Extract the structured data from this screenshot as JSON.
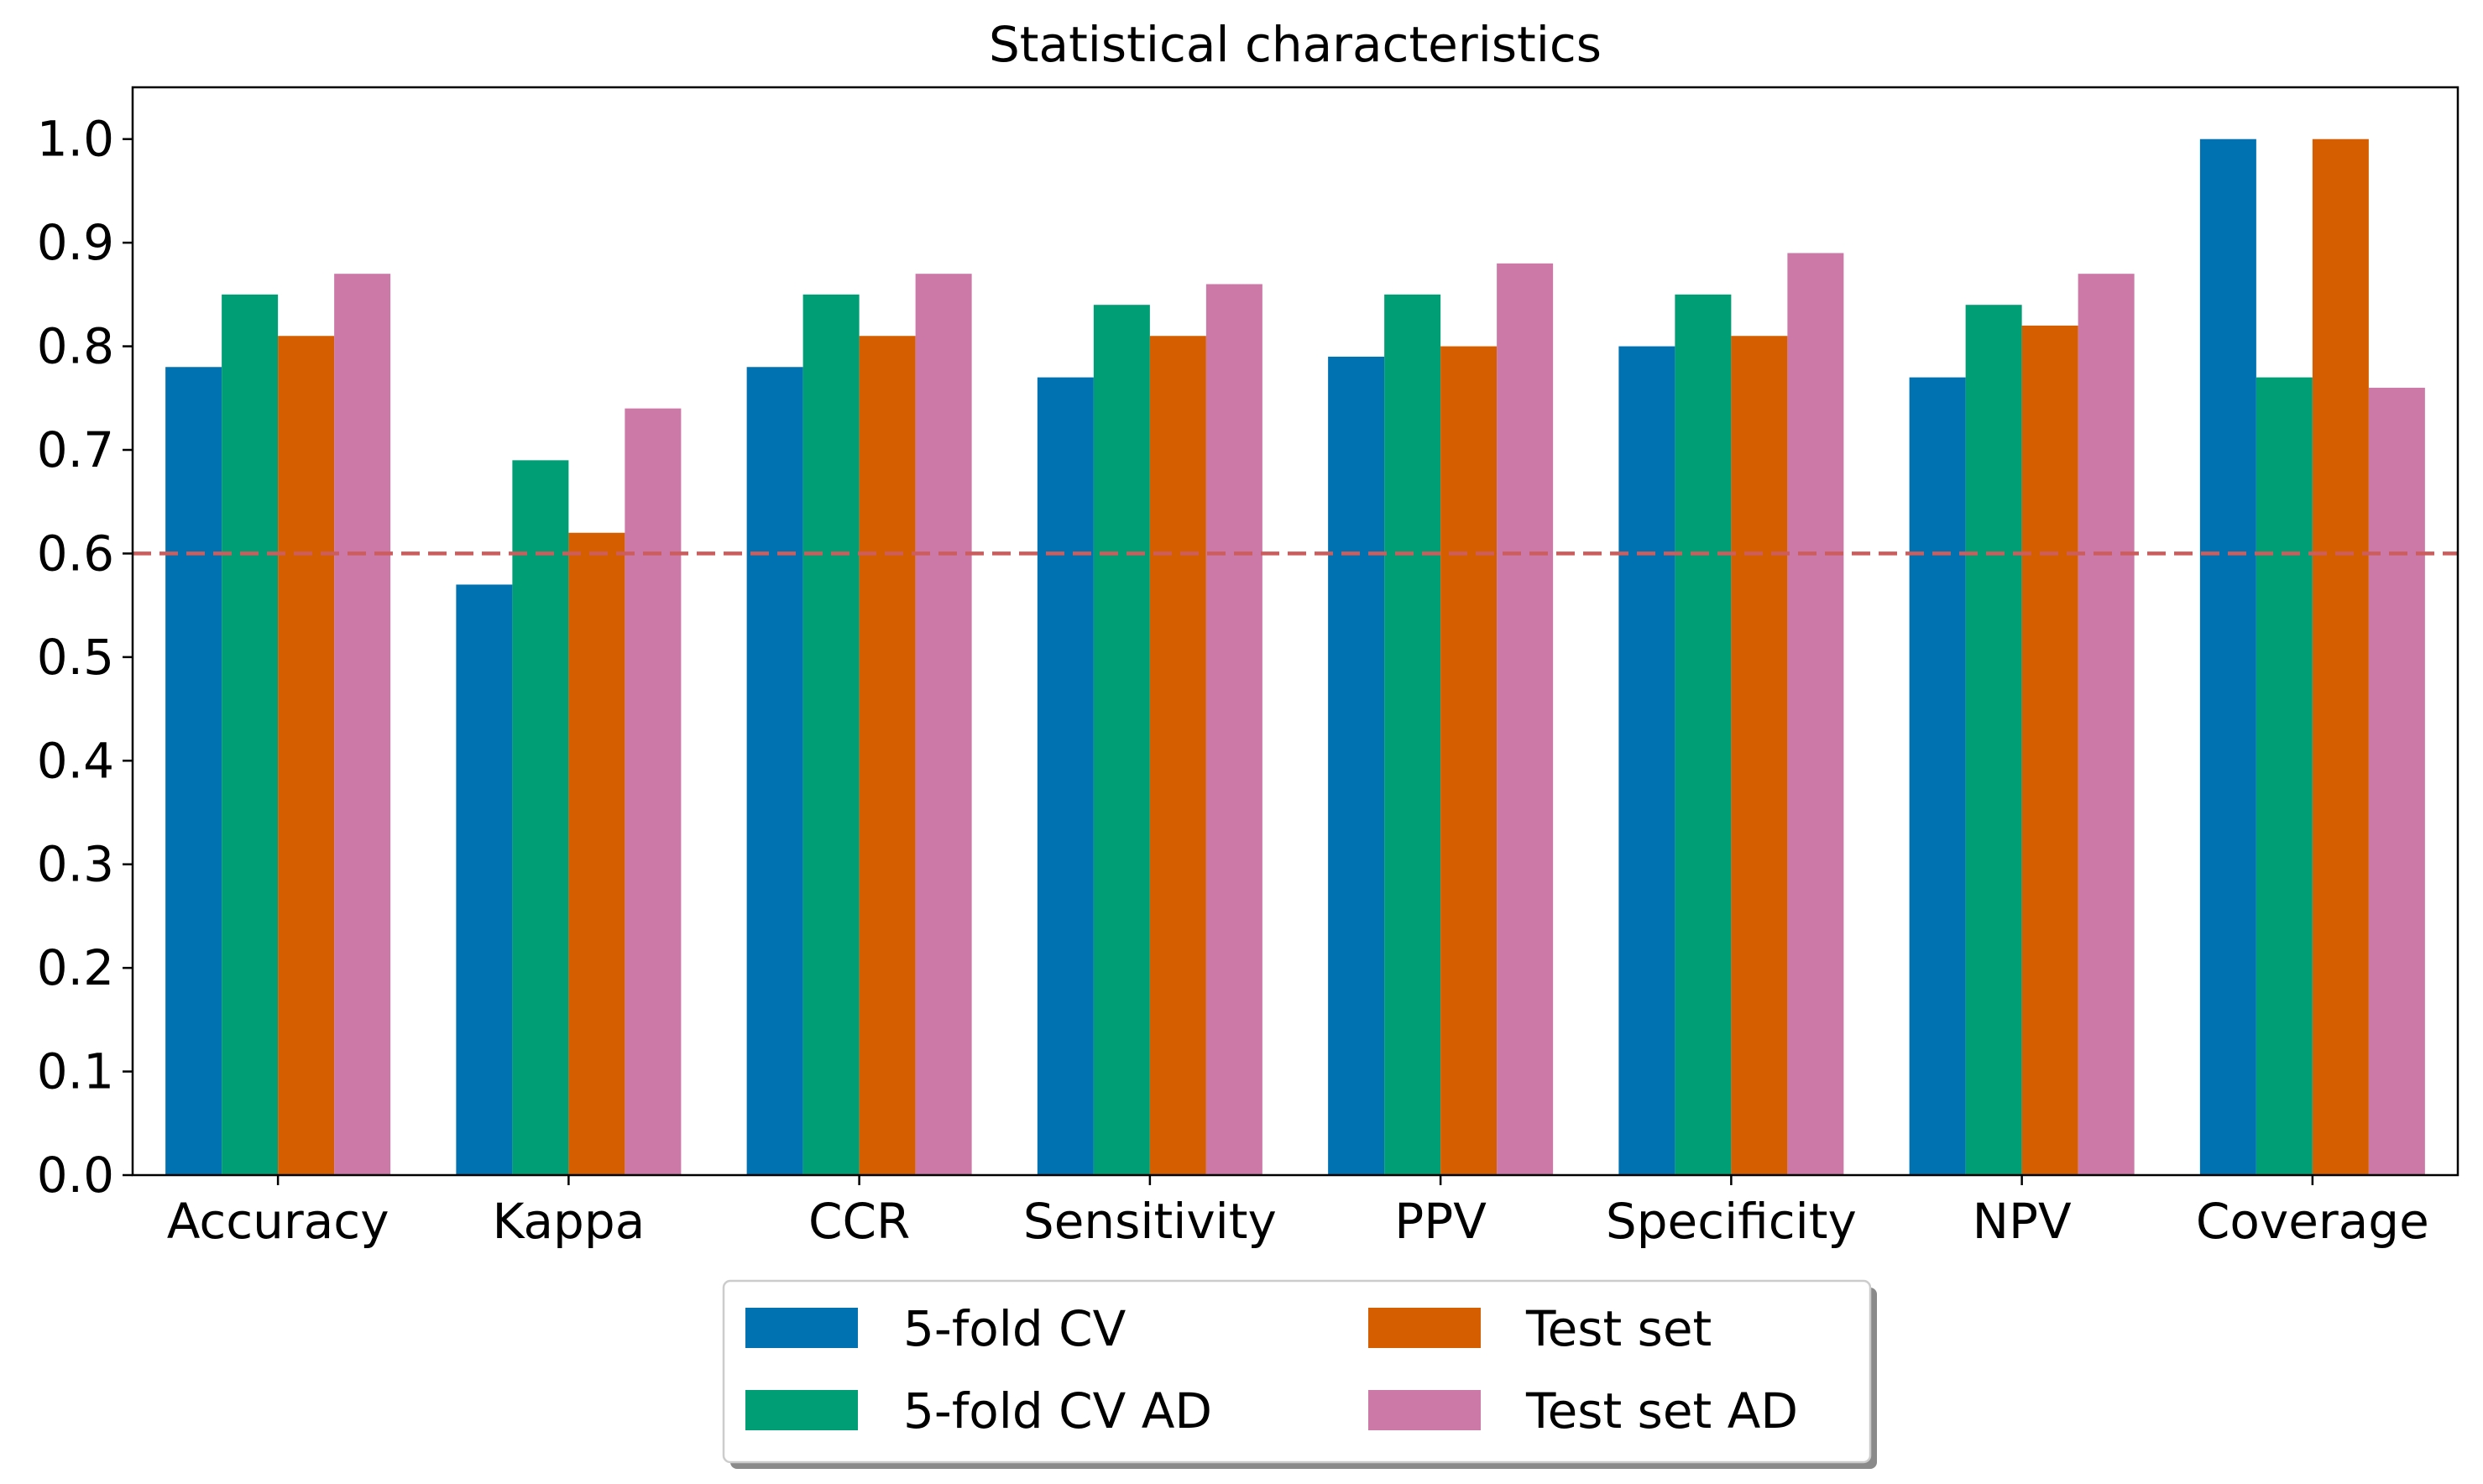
{
  "chart_data": {
    "type": "bar",
    "title": "Statistical characteristics",
    "xlabel": "",
    "ylabel": "",
    "ylim": [
      0,
      1.05
    ],
    "yticks": [
      0.0,
      0.1,
      0.2,
      0.3,
      0.4,
      0.5,
      0.6,
      0.7,
      0.8,
      0.9,
      1.0
    ],
    "ytick_labels": [
      "0.0",
      "0.1",
      "0.2",
      "0.3",
      "0.4",
      "0.5",
      "0.6",
      "0.7",
      "0.8",
      "0.9",
      "1.0"
    ],
    "categories": [
      "Accuracy",
      "Kappa",
      "CCR",
      "Sensitivity",
      "PPV",
      "Specificity",
      "NPV",
      "Coverage"
    ],
    "series": [
      {
        "name": "5-fold CV",
        "color": "#0072b2",
        "values": [
          0.78,
          0.57,
          0.78,
          0.77,
          0.79,
          0.8,
          0.77,
          1.0
        ]
      },
      {
        "name": "5-fold CV AD",
        "color": "#009e74",
        "values": [
          0.85,
          0.69,
          0.85,
          0.84,
          0.85,
          0.85,
          0.84,
          0.77
        ]
      },
      {
        "name": "Test set",
        "color": "#d55e00",
        "values": [
          0.81,
          0.62,
          0.81,
          0.81,
          0.8,
          0.81,
          0.82,
          1.0
        ]
      },
      {
        "name": "Test set AD",
        "color": "#cc79a7",
        "values": [
          0.87,
          0.74,
          0.87,
          0.86,
          0.88,
          0.89,
          0.87,
          0.76
        ]
      }
    ],
    "reference_line": {
      "y": 0.6,
      "style": "dashed",
      "color": "#cd5c5c"
    },
    "grid": false,
    "legend": {
      "placement": "bottom-center",
      "columns": 2
    }
  }
}
